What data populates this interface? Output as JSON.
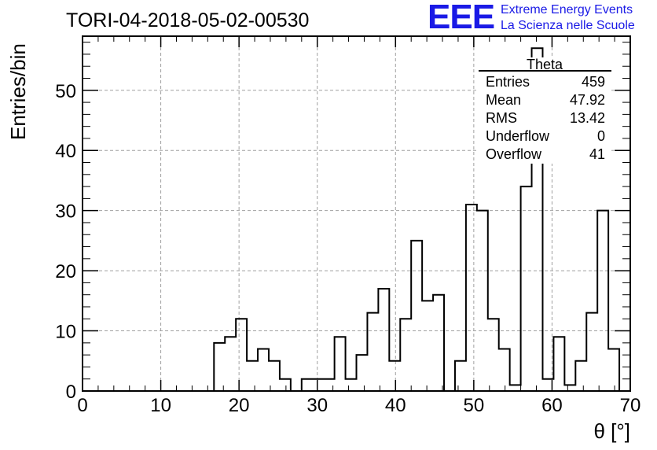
{
  "header": {
    "run_title": "TORI-04-2018-05-02-00530",
    "logo_text": "EEE",
    "logo_line1": "Extreme Energy Events",
    "logo_line2": "La Scienza nelle Scuole"
  },
  "stats_box": {
    "title": "Theta",
    "rows": [
      {
        "label": "Entries",
        "value": "459"
      },
      {
        "label": "Mean",
        "value": "47.92"
      },
      {
        "label": "RMS",
        "value": "13.42"
      },
      {
        "label": "Underflow",
        "value": "0"
      },
      {
        "label": "Overflow",
        "value": "41"
      }
    ]
  },
  "colors": {
    "logo": "#1a1ae6",
    "grid": "#a0a0a0",
    "line": "#000000"
  },
  "chart_data": {
    "type": "histogram",
    "title": "TORI-04-2018-05-02-00530",
    "xlabel": "θ [°]",
    "ylabel": "Entries/bin",
    "xlim": [
      0,
      70
    ],
    "ylim": [
      0,
      59
    ],
    "x_ticks": [
      0,
      10,
      20,
      30,
      40,
      50,
      60,
      70
    ],
    "y_ticks": [
      0,
      10,
      20,
      30,
      40,
      50
    ],
    "grid": true,
    "bin_width": 1.4,
    "bin_start": 0,
    "values": [
      0,
      0,
      0,
      0,
      0,
      0,
      0,
      0,
      0,
      0,
      0,
      0,
      8,
      9,
      12,
      5,
      7,
      5,
      2,
      0,
      2,
      2,
      2,
      9,
      2,
      6,
      13,
      17,
      5,
      12,
      25,
      15,
      16,
      0,
      5,
      31,
      30,
      12,
      7,
      1,
      34,
      57,
      2,
      9,
      1,
      5,
      13,
      30,
      7,
      0
    ]
  }
}
